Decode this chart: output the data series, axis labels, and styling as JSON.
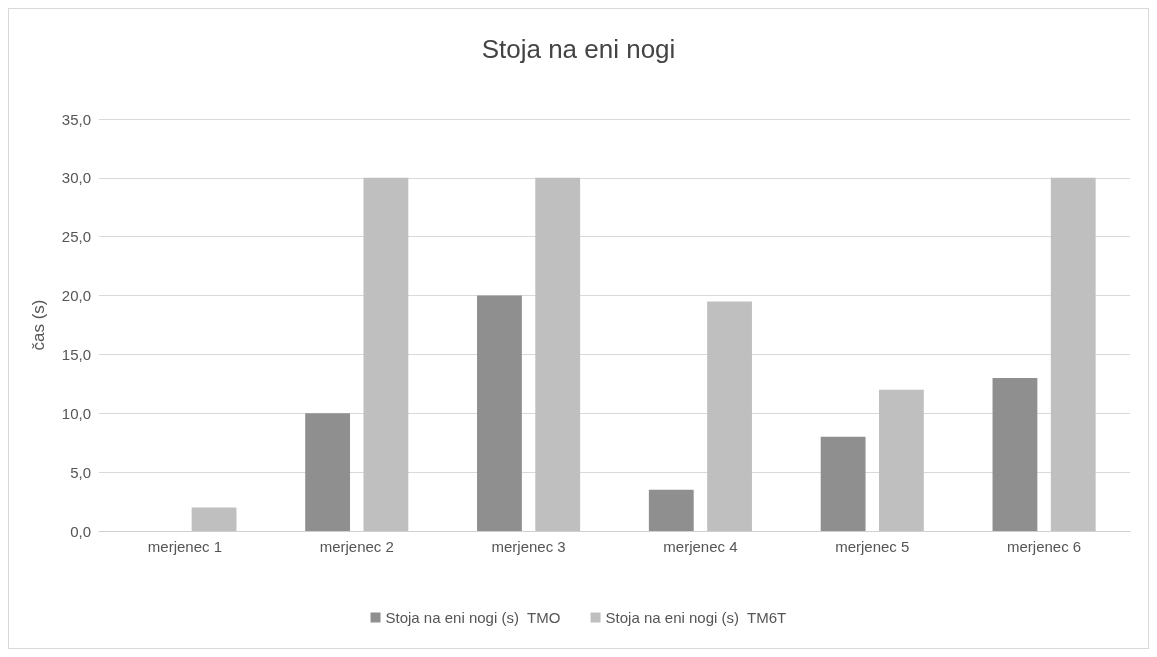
{
  "chart_data": {
    "type": "bar",
    "title": "Stoja na eni nogi",
    "ylabel": "čas (s)",
    "categories": [
      "merjenec 1",
      "merjenec 2",
      "merjenec 3",
      "merjenec 4",
      "merjenec 5",
      "merjenec 6"
    ],
    "series": [
      {
        "name": "Stoja na eni nogi (s)  TMO",
        "color": "#8f8f8f",
        "values": [
          0,
          10,
          20,
          3.5,
          8,
          13
        ]
      },
      {
        "name": "Stoja na eni nogi (s)  TM6T",
        "color": "#bfbfbf",
        "values": [
          2,
          30,
          30,
          19.5,
          12,
          30
        ]
      }
    ],
    "ylim": [
      0,
      35
    ],
    "yticks": [
      {
        "value": 0,
        "label": "0,0"
      },
      {
        "value": 5,
        "label": "5,0"
      },
      {
        "value": 10,
        "label": "10,0"
      },
      {
        "value": 15,
        "label": "15,0"
      },
      {
        "value": 20,
        "label": "20,0"
      },
      {
        "value": 25,
        "label": "25,0"
      },
      {
        "value": 30,
        "label": "30,0"
      },
      {
        "value": 35,
        "label": "35,0"
      }
    ],
    "grid": "y",
    "legend": "bottom"
  }
}
